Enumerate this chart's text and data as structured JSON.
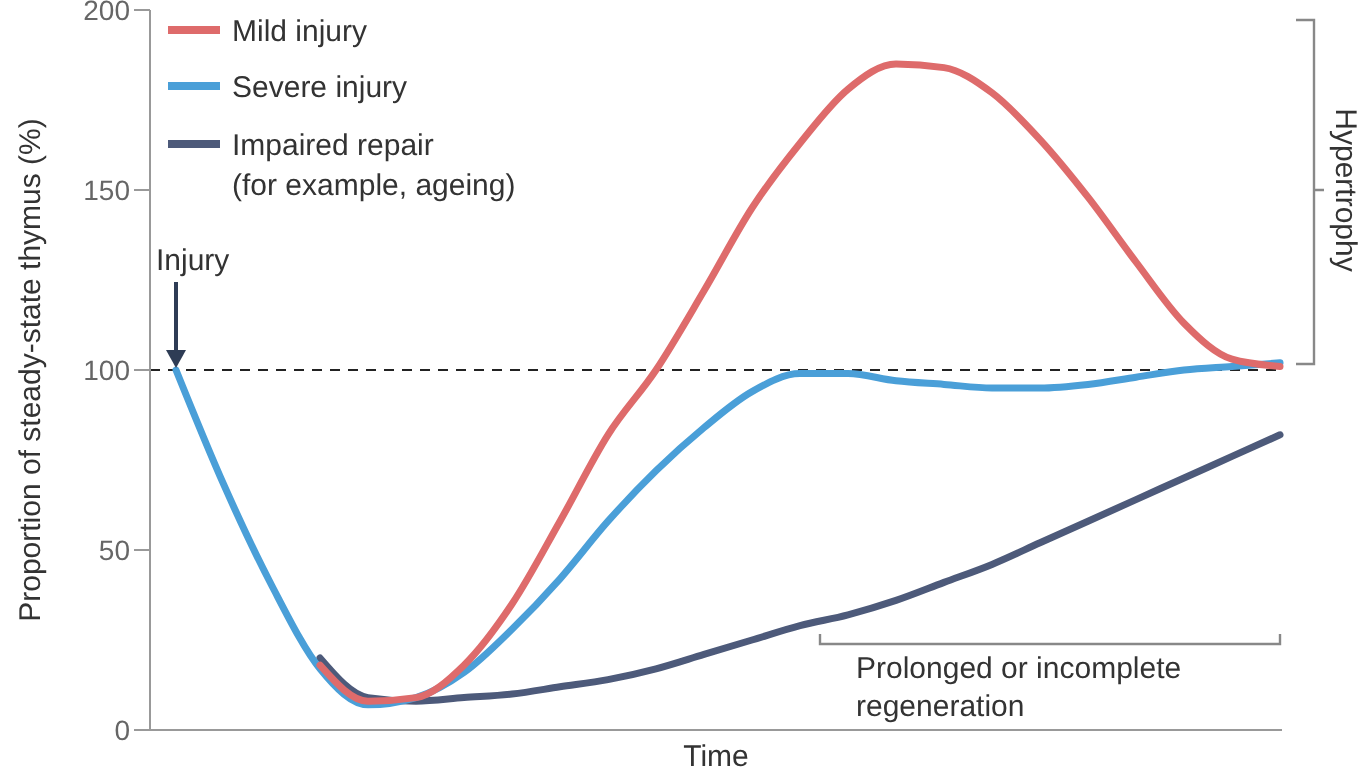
{
  "chart_data": {
    "type": "line",
    "ylabel": "Proportion of steady-state thymus (%)",
    "xlabel": "Time",
    "categories": [
      null,
      null,
      null,
      null,
      null,
      null,
      null,
      null,
      null,
      null,
      null,
      null,
      null,
      null,
      null,
      null,
      null,
      null,
      null,
      null,
      null,
      null,
      null,
      null
    ],
    "series": [
      {
        "name": "Mild injury",
        "color": "#de6b6b",
        "values": [
          null,
          null,
          null,
          18,
          8,
          9,
          18,
          35,
          58,
          82,
          100,
          122,
          145,
          163,
          178,
          185,
          184,
          177,
          164,
          148,
          130,
          113,
          103,
          101
        ]
      },
      {
        "name": "Severe injury",
        "color": "#4a9fd8",
        "values": [
          100,
          68,
          40,
          17,
          7,
          9,
          16,
          28,
          42,
          58,
          72,
          84,
          94,
          99,
          99,
          97,
          96,
          95,
          95,
          96,
          98,
          100,
          101,
          102
        ]
      },
      {
        "name": "Impaired repair\n(for example, ageing)",
        "color": "#4d5a7a",
        "values": [
          null,
          null,
          null,
          20,
          9,
          8,
          9,
          10,
          12,
          14,
          17,
          21,
          25,
          29,
          32,
          36,
          41,
          46,
          52,
          58,
          64,
          70,
          76,
          82
        ]
      }
    ],
    "ylim": [
      0,
      200
    ],
    "yticks": [
      0,
      50,
      100,
      150,
      200
    ],
    "ref_lines": [
      {
        "axis": "y",
        "value": 100,
        "line_style": "dashed",
        "color": "#222222"
      }
    ],
    "annotations": [
      "Injury",
      "Hypertrophy",
      "Prolonged or incomplete regeneration"
    ],
    "legend": "top left",
    "grid": false,
    "marker": "none",
    "line_style": "solid"
  }
}
